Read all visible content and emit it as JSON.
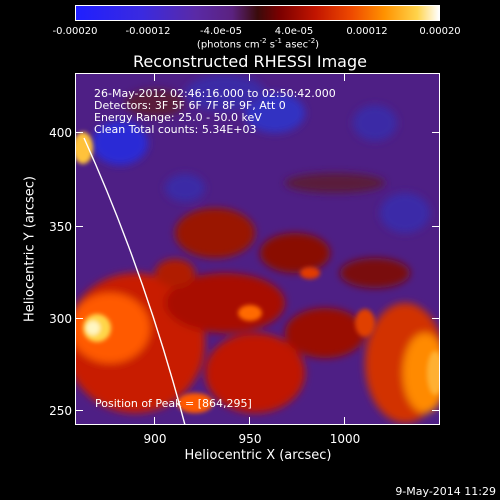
{
  "colorbar": {
    "tick_labels": [
      "-0.00020",
      "-0.00012",
      "-4.0e-05",
      "4.0e-05",
      "0.00012",
      "0.00020"
    ],
    "units_prefix": "(photons cm",
    "units_exp1": "-2",
    "units_mid": " s",
    "units_exp2": "-1",
    "units_mid2": " asec",
    "units_exp3": "-2",
    "units_suffix": ")"
  },
  "title": "Reconstructed RHESSI Image",
  "info": {
    "time_range": "26-May-2012 02:46:16.000 to 02:50:42.000",
    "detectors": "Detectors: 3F 5F 6F 7F 8F 9F, Att 0",
    "energy": "Energy Range: 25.0 - 50.0 keV",
    "clean": "Clean    Total counts: 5.34E+03"
  },
  "peak_label": "Position of Peak = [864,295]",
  "axes": {
    "x_title": "Heliocentric X (arcsec)",
    "y_title": "Heliocentric Y (arcsec)",
    "x_ticks": [
      "900",
      "950",
      "1000"
    ],
    "y_ticks": [
      "400",
      "350",
      "300",
      "250"
    ]
  },
  "timestamp": "9-May-2014 11:29"
}
